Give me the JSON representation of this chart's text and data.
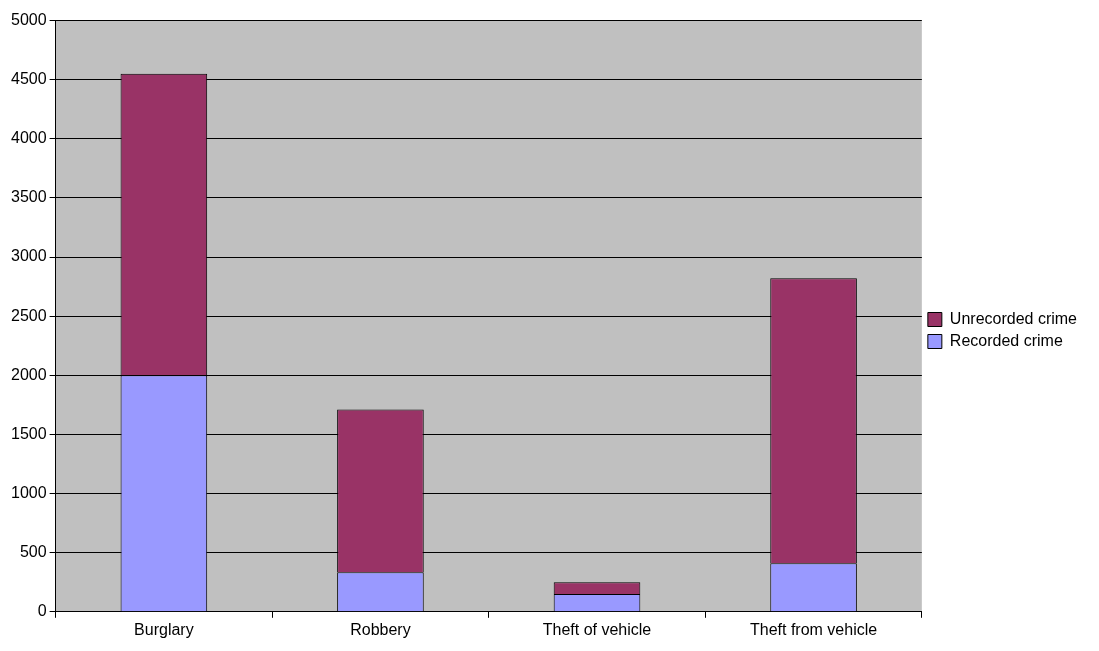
{
  "chart_data": {
    "type": "bar",
    "stacked": true,
    "categories": [
      "Burglary",
      "Robbery",
      "Theft of vehicle",
      "Theft from vehicle"
    ],
    "series": [
      {
        "name": "Recorded crime",
        "color": "#9999ff",
        "values": [
          2000,
          335,
          150,
          410
        ]
      },
      {
        "name": "Unrecorded crime",
        "color": "#993366",
        "values": [
          2550,
          1375,
          100,
          2410
        ]
      }
    ],
    "ylim": [
      0,
      5000
    ],
    "yticks": [
      0,
      500,
      1000,
      1500,
      2000,
      2500,
      3000,
      3500,
      4000,
      4500,
      5000
    ],
    "grid": "y",
    "legend": "right"
  }
}
